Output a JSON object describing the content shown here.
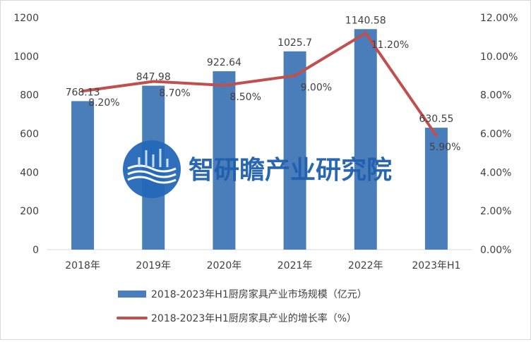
{
  "chart_data": {
    "type": "bar+line",
    "categories": [
      "2018年",
      "2019年",
      "2020年",
      "2021年",
      "2022年",
      "2023年H1"
    ],
    "series": [
      {
        "name": "2018-2023年H1厨房家具产业市场规模（亿元）",
        "type": "bar",
        "axis": "left",
        "color": "#4a7ebb",
        "values": [
          768.13,
          847.98,
          922.64,
          1025.7,
          1140.58,
          630.55
        ],
        "labels": [
          "768.13",
          "847.98",
          "922.64",
          "1025.7",
          "1140.58",
          "630.55"
        ]
      },
      {
        "name": "2018-2023年H1厨房家具产业的增长率（%）",
        "type": "line",
        "axis": "right",
        "color": "#c0504d",
        "values": [
          8.2,
          8.7,
          8.5,
          9.0,
          11.2,
          5.9
        ],
        "labels": [
          "8.20%",
          "8.70%",
          "8.50%",
          "9.00%",
          "11.20%",
          "5.90%"
        ]
      }
    ],
    "y_left": {
      "range": [
        0,
        1200
      ],
      "ticks": [
        "0",
        "200",
        "400",
        "600",
        "800",
        "1000",
        "1200"
      ]
    },
    "y_right": {
      "range": [
        0,
        12
      ],
      "ticks": [
        "0.00%",
        "2.00%",
        "4.00%",
        "6.00%",
        "8.00%",
        "10.00%",
        "12.00%"
      ]
    },
    "grid": false,
    "legend_placement": "bottom"
  },
  "watermark": {
    "text": "智研瞻产业研究院",
    "color": "#1f5fae"
  }
}
